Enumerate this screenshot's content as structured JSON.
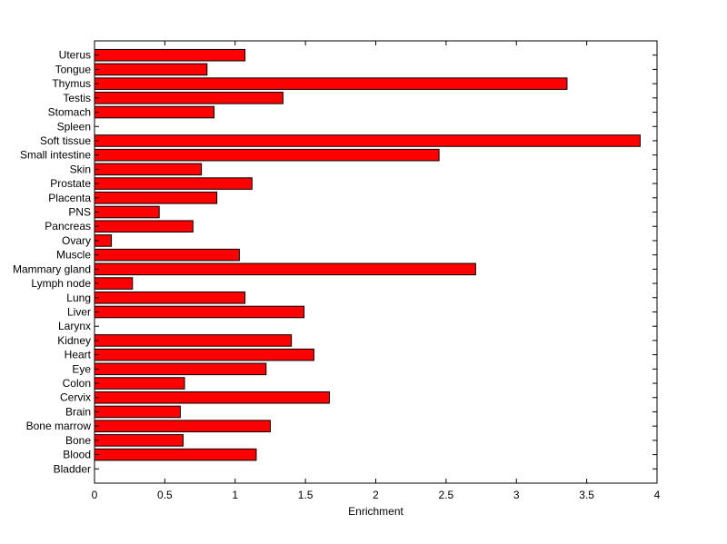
{
  "chart_data": {
    "type": "bar",
    "orientation": "horizontal",
    "title": "",
    "xlabel": "Enrichment",
    "ylabel": "",
    "xlim": [
      0,
      4
    ],
    "xticks": [
      "0",
      "0.5",
      "1",
      "1.5",
      "2",
      "2.5",
      "3",
      "3.5",
      "4"
    ],
    "grid": false,
    "legend": "none",
    "bar_color": "#ff0000",
    "bar_edge_color": "#000000",
    "categories": [
      "Bladder",
      "Blood",
      "Bone",
      "Bone marrow",
      "Brain",
      "Cervix",
      "Colon",
      "Eye",
      "Heart",
      "Kidney",
      "Larynx",
      "Liver",
      "Lung",
      "Lymph node",
      "Mammary gland",
      "Muscle",
      "Ovary",
      "Pancreas",
      "PNS",
      "Placenta",
      "Prostate",
      "Skin",
      "Small intestine",
      "Soft tissue",
      "Spleen",
      "Stomach",
      "Testis",
      "Thymus",
      "Tongue",
      "Uterus"
    ],
    "values": [
      0,
      1.15,
      0.63,
      1.25,
      0.61,
      1.67,
      0.64,
      1.22,
      1.56,
      1.4,
      0,
      1.49,
      1.07,
      0.27,
      2.71,
      1.03,
      0.12,
      0.7,
      0.46,
      0.87,
      1.12,
      0.76,
      2.45,
      3.88,
      0,
      0.85,
      1.34,
      3.36,
      0.8,
      1.07
    ]
  }
}
